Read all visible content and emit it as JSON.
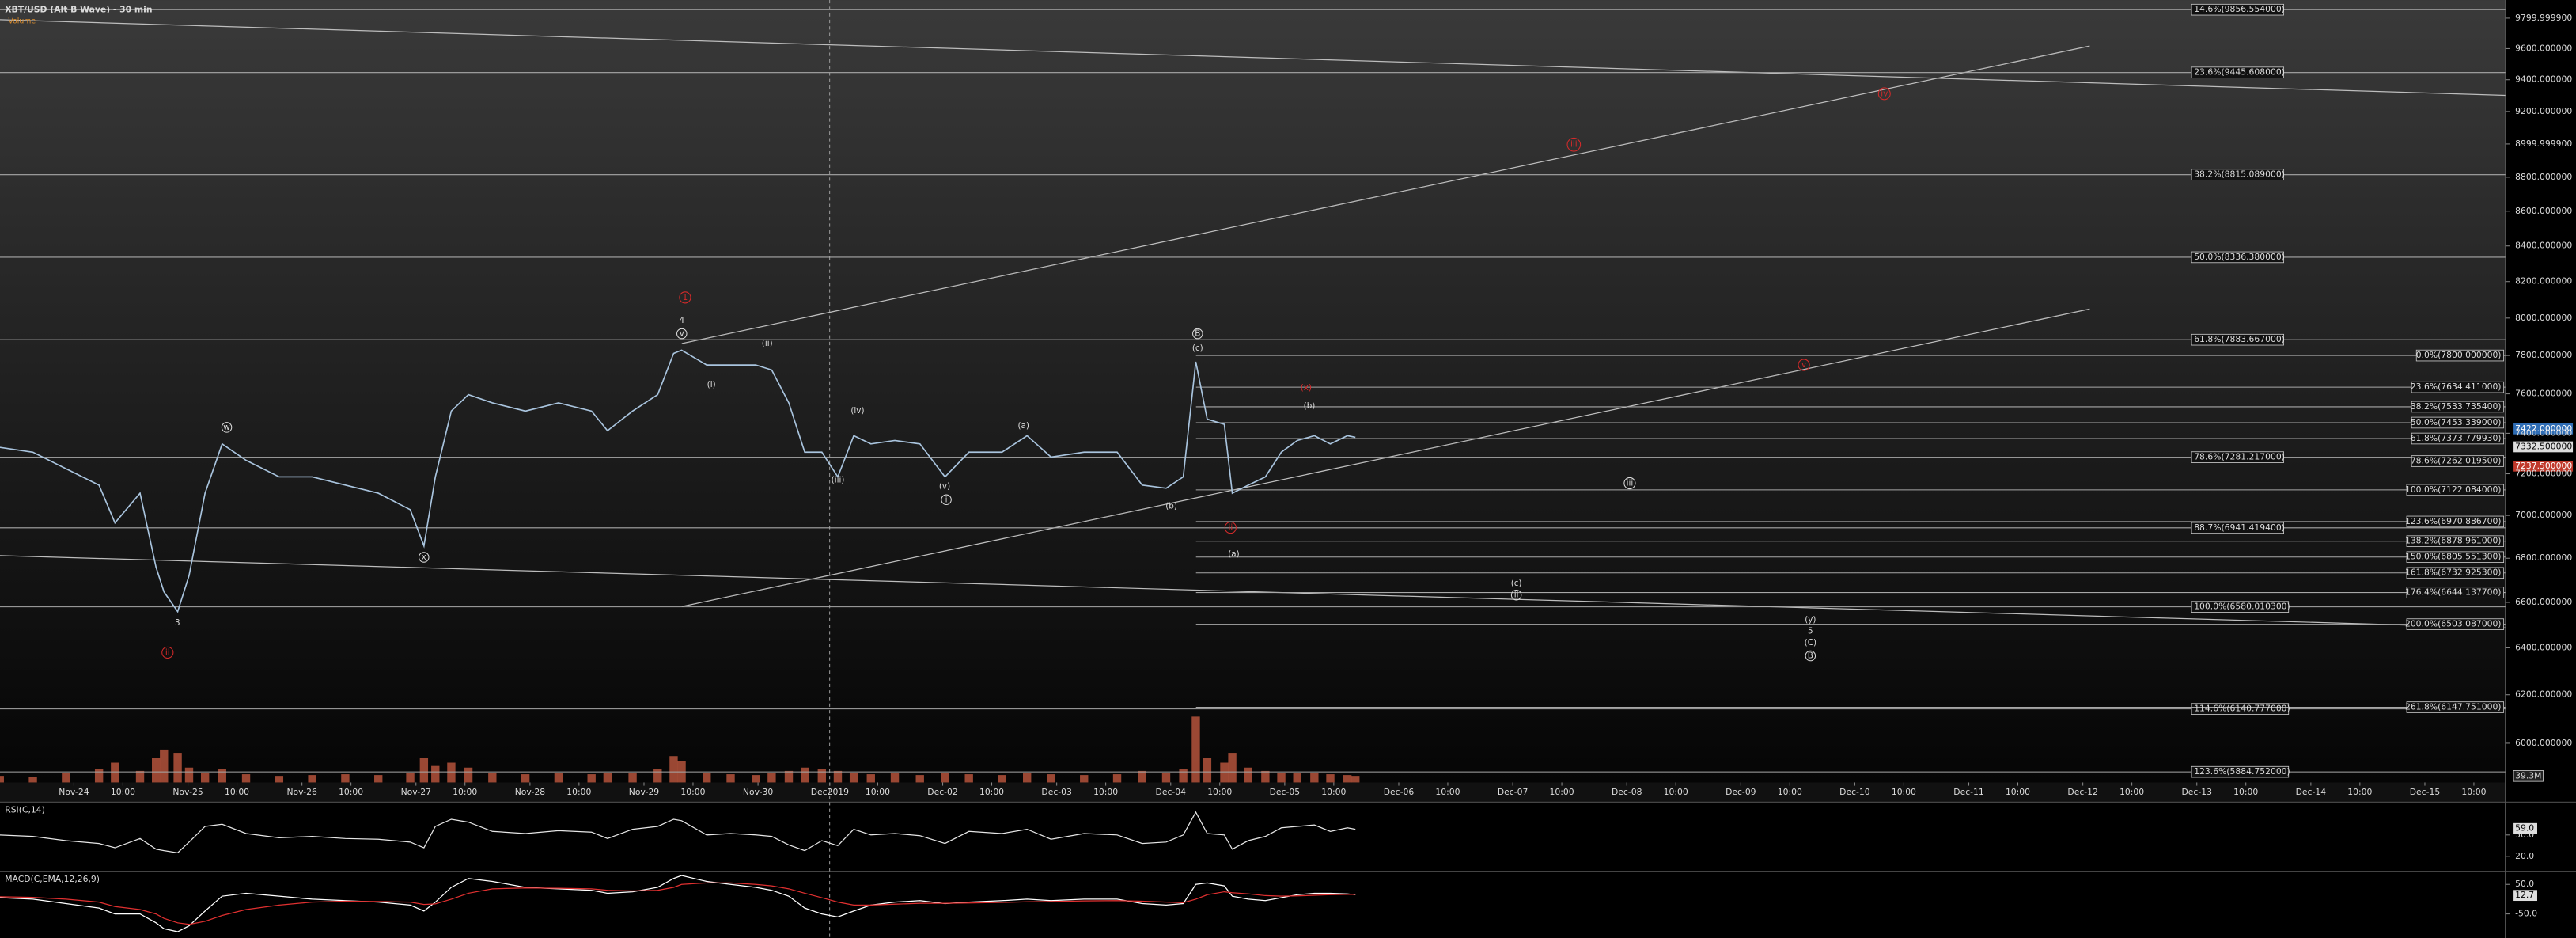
{
  "chart_data": [
    {
      "type": "line",
      "title": "XBT/USD (Alt B Wave) - 30 min",
      "subtitle": "Volume",
      "log_scale": true,
      "color": "#a9c4de",
      "volume_color": "#b5533c",
      "x": [
        -0.65,
        -0.36,
        -0.07,
        0.22,
        0.36,
        0.58,
        0.72,
        0.79,
        0.91,
        1.01,
        1.15,
        1.3,
        1.51,
        1.8,
        2.09,
        2.38,
        2.67,
        2.95,
        3.07,
        3.17,
        3.31,
        3.46,
        3.67,
        3.96,
        4.25,
        4.54,
        4.68,
        4.9,
        5.12,
        5.26,
        5.33,
        5.55,
        5.76,
        5.98,
        6.12,
        6.27,
        6.41,
        6.56,
        6.7,
        6.84,
        6.99,
        7.2,
        7.42,
        7.64,
        7.85,
        8.14,
        8.36,
        8.57,
        8.86,
        9.15,
        9.37,
        9.58,
        9.73,
        9.84,
        9.94,
        10.09,
        10.16,
        10.3,
        10.45,
        10.59,
        10.73,
        10.88,
        11.02,
        11.17,
        11.24
      ],
      "values": [
        7330,
        7306,
        7225,
        7145,
        6965,
        7106,
        6759,
        6647,
        6559,
        6721,
        7106,
        7347,
        7266,
        7185,
        7185,
        7145,
        7106,
        7027,
        6857,
        7185,
        7512,
        7596,
        7554,
        7512,
        7554,
        7512,
        7413,
        7512,
        7596,
        7811,
        7828,
        7750,
        7750,
        7750,
        7724,
        7554,
        7306,
        7306,
        7185,
        7388,
        7347,
        7364,
        7347,
        7185,
        7306,
        7306,
        7388,
        7282,
        7306,
        7306,
        7145,
        7130,
        7185,
        7767,
        7471,
        7445,
        7106,
        7145,
        7185,
        7306,
        7364,
        7388,
        7347,
        7388,
        7380
      ],
      "volume": [
        40,
        35,
        60,
        80,
        120,
        70,
        150,
        200,
        180,
        90,
        60,
        80,
        50,
        40,
        45,
        50,
        45,
        60,
        150,
        100,
        120,
        90,
        60,
        50,
        55,
        50,
        60,
        55,
        80,
        160,
        130,
        60,
        50,
        45,
        55,
        70,
        90,
        80,
        70,
        60,
        50,
        55,
        45,
        60,
        50,
        45,
        55,
        50,
        45,
        50,
        70,
        60,
        80,
        400,
        150,
        120,
        180,
        90,
        70,
        60,
        55,
        60,
        50,
        45,
        40
      ],
      "vlim": [
        0,
        400
      ],
      "volume_tag": {
        "value": 39.3,
        "label": "39.3M"
      },
      "xlim": [
        -0.6484,
        21.326
      ],
      "xticks": [
        {
          "value": 0,
          "label": "Nov-24"
        },
        {
          "value": 0.43,
          "label": "10:00"
        },
        {
          "value": 1,
          "label": "Nov-25"
        },
        {
          "value": 1.43,
          "label": "10:00"
        },
        {
          "value": 2,
          "label": "Nov-26"
        },
        {
          "value": 2.43,
          "label": "10:00"
        },
        {
          "value": 3,
          "label": "Nov-27"
        },
        {
          "value": 3.43,
          "label": "10:00"
        },
        {
          "value": 4,
          "label": "Nov-28"
        },
        {
          "value": 4.43,
          "label": "10:00"
        },
        {
          "value": 5,
          "label": "Nov-29"
        },
        {
          "value": 5.43,
          "label": "10:00"
        },
        {
          "value": 6,
          "label": "Nov-30"
        },
        {
          "value": 6.63,
          "label": "Dec2019"
        },
        {
          "value": 7.05,
          "label": "10:00"
        },
        {
          "value": 7.62,
          "label": "Dec-02"
        },
        {
          "value": 8.05,
          "label": "10:00"
        },
        {
          "value": 8.62,
          "label": "Dec-03"
        },
        {
          "value": 9.05,
          "label": "10:00"
        },
        {
          "value": 9.62,
          "label": "Dec-04"
        },
        {
          "value": 10.05,
          "label": "10:00"
        },
        {
          "value": 10.62,
          "label": "Dec-05"
        },
        {
          "value": 11.05,
          "label": "10:00"
        },
        {
          "value": 11.62,
          "label": "Dec-06"
        },
        {
          "value": 12.05,
          "label": "10:00"
        },
        {
          "value": 12.62,
          "label": "Dec-07"
        },
        {
          "value": 13.05,
          "label": "10:00"
        },
        {
          "value": 13.62,
          "label": "Dec-08"
        },
        {
          "value": 14.05,
          "label": "10:00"
        },
        {
          "value": 14.62,
          "label": "Dec-09"
        },
        {
          "value": 15.05,
          "label": "10:00"
        },
        {
          "value": 15.62,
          "label": "Dec-10"
        },
        {
          "value": 16.05,
          "label": "10:00"
        },
        {
          "value": 16.62,
          "label": "Dec-11"
        },
        {
          "value": 17.05,
          "label": "10:00"
        },
        {
          "value": 17.62,
          "label": "Dec-12"
        },
        {
          "value": 18.05,
          "label": "10:00"
        },
        {
          "value": 18.62,
          "label": "Dec-13"
        },
        {
          "value": 19.05,
          "label": "10:00"
        },
        {
          "value": 19.62,
          "label": "Dec-14"
        },
        {
          "value": 20.05,
          "label": "10:00"
        },
        {
          "value": 20.62,
          "label": "Dec-15"
        },
        {
          "value": 21.05,
          "label": "10:00"
        }
      ],
      "ylim": [
        5843,
        9921
      ],
      "yticks": [
        {
          "value": 6000,
          "label": "6000.000000"
        },
        {
          "value": 6200,
          "label": "6200.000000"
        },
        {
          "value": 6400,
          "label": "6400.000000"
        },
        {
          "value": 6600,
          "label": "6600.000000"
        },
        {
          "value": 6800,
          "label": "6800.000000"
        },
        {
          "value": 7000,
          "label": "7000.000000"
        },
        {
          "value": 7200,
          "label": "7200.000000"
        },
        {
          "value": 7400,
          "label": "7400.000000"
        },
        {
          "value": 7600,
          "label": "7600.000000"
        },
        {
          "value": 7800,
          "label": "7800.000000"
        },
        {
          "value": 8000,
          "label": "8000.000000"
        },
        {
          "value": 8200,
          "label": "8200.000000"
        },
        {
          "value": 8400,
          "label": "8400.000000"
        },
        {
          "value": 8600,
          "label": "8600.000000"
        },
        {
          "value": 8800,
          "label": "8800.000000"
        },
        {
          "value": 8999.9999,
          "label": "8999.999900"
        },
        {
          "value": 9200,
          "label": "9200.000000"
        },
        {
          "value": 9400,
          "label": "9400.000000"
        },
        {
          "value": 9600,
          "label": "9600.000000"
        },
        {
          "value": 9799.9999,
          "label": "9799.999900"
        }
      ],
      "fib_levels": [
        {
          "value": 9856.554,
          "label": "14.6%(9856.554000)"
        },
        {
          "value": 9445.608,
          "label": "23.6%(9445.608000)"
        },
        {
          "value": 8815.089,
          "label": "38.2%(8815.089000)"
        },
        {
          "value": 8336.38,
          "label": "50.0%(8336.380000)"
        },
        {
          "value": 7883.667,
          "label": "61.8%(7883.667000)"
        },
        {
          "value": 7281.217,
          "label": "78.6%(7281.217000)"
        },
        {
          "value": 6941.4194,
          "label": "88.7%(6941.419400)"
        },
        {
          "value": 6580.0103,
          "label": "100.0%(6580.010300)"
        },
        {
          "value": 6140.777,
          "label": "114.6%(6140.777000)"
        },
        {
          "value": 5884.752,
          "label": "123.6%(5884.752000)"
        }
      ],
      "fib_levels_right": [
        {
          "value": 7800,
          "label": "0.0%(7800.000000)"
        },
        {
          "value": 7634.411,
          "label": "23.6%(7634.411000)"
        },
        {
          "value": 7533.7354,
          "label": "38.2%(7533.735400)"
        },
        {
          "value": 7453.339,
          "label": "50.0%(7453.339000)"
        },
        {
          "value": 7373.77993,
          "label": "61.8%(7373.779930)"
        },
        {
          "value": 7262.0195,
          "label": "78.6%(7262.019500)"
        },
        {
          "value": 7122.084,
          "label": "100.0%(7122.084000)"
        },
        {
          "value": 6970.8867,
          "label": "123.6%(6970.886700)"
        },
        {
          "value": 6878.961,
          "label": "138.2%(6878.961000)"
        },
        {
          "value": 6805.5513,
          "label": "150.0%(6805.551300)"
        },
        {
          "value": 6732.9253,
          "label": "161.8%(6732.925300)"
        },
        {
          "value": 6644.1377,
          "label": "176.4%(6644.137700)"
        },
        {
          "value": 6503.087,
          "label": "200.0%(6503.087000)"
        },
        {
          "value": 6147.751,
          "label": "261.8%(6147.751000)"
        }
      ],
      "price_tags": [
        {
          "value": 7422,
          "label": "7422.000000",
          "color": "#2f6db5"
        },
        {
          "value": 7332.5,
          "label": "7332.500000",
          "color": "#dddddd"
        },
        {
          "value": 7237.5,
          "label": "7237.500000",
          "color": "#c0392b"
        }
      ]
    },
    {
      "type": "line",
      "title": "RSI(C,14)",
      "color": "#e6e6e6",
      "values": [
        50,
        48,
        42,
        38,
        32,
        45,
        30,
        28,
        25,
        40,
        62,
        65,
        52,
        46,
        48,
        45,
        44,
        40,
        32,
        62,
        72,
        68,
        55,
        52,
        56,
        54,
        45,
        58,
        62,
        72,
        70,
        50,
        52,
        50,
        48,
        36,
        28,
        42,
        35,
        58,
        50,
        52,
        49,
        38,
        55,
        52,
        58,
        44,
        52,
        50,
        38,
        40,
        50,
        82,
        52,
        50,
        30,
        42,
        48,
        60,
        62,
        64,
        55,
        60,
        58
      ],
      "ylim": [
        1.5,
        96
      ],
      "yticks": [
        {
          "value": 20,
          "label": "20.0"
        },
        {
          "value": 50,
          "label": "50.0"
        }
      ],
      "value_tag": {
        "value": 59,
        "label": "59.0"
      }
    },
    {
      "type": "line",
      "title": "MACD(C,EMA,12,26,9)",
      "series": [
        {
          "color": "#ffffff",
          "values": [
            5,
            0,
            -15,
            -30,
            -50,
            -50,
            -80,
            -100,
            -110,
            -90,
            -40,
            10,
            20,
            10,
            0,
            -5,
            -10,
            -20,
            -40,
            -10,
            40,
            70,
            60,
            40,
            35,
            30,
            20,
            25,
            40,
            70,
            80,
            60,
            50,
            40,
            30,
            10,
            -30,
            -50,
            -60,
            -40,
            -20,
            -10,
            -5,
            -15,
            -10,
            -5,
            0,
            -5,
            0,
            0,
            -15,
            -20,
            -15,
            50,
            55,
            45,
            10,
            0,
            -5,
            5,
            15,
            20,
            20,
            18,
            15
          ]
        },
        {
          "color": "#e03030",
          "values": [
            8,
            6,
            0,
            -10,
            -25,
            -35,
            -50,
            -65,
            -80,
            -85,
            -75,
            -55,
            -35,
            -20,
            -10,
            -7,
            -8,
            -10,
            -18,
            -16,
            0,
            20,
            35,
            38,
            37,
            35,
            30,
            28,
            30,
            40,
            50,
            55,
            55,
            50,
            45,
            35,
            20,
            5,
            -10,
            -20,
            -20,
            -17,
            -14,
            -14,
            -13,
            -11,
            -9,
            -8,
            -6,
            -5,
            -7,
            -10,
            -12,
            0,
            15,
            25,
            22,
            18,
            12,
            10,
            11,
            13,
            15,
            16,
            16
          ]
        }
      ],
      "ylim": [
        -131,
        89
      ],
      "yticks": [
        {
          "value": 50,
          "label": "50.0"
        },
        {
          "value": -50,
          "label": "-50.0"
        }
      ],
      "value_tag": {
        "value": 12.7,
        "label": "12.7"
      }
    }
  ],
  "wave_labels": [
    "4",
    "v",
    "(ii)",
    "(i)",
    "(iv)",
    "(iii)",
    "(a)",
    "(v)",
    "i",
    "w",
    "x",
    "3",
    "ii",
    "B",
    "(c)",
    "(b)",
    "(a)",
    "(b)",
    "(x)",
    "ii",
    "iii",
    "iv",
    "v",
    "iii",
    "(c)",
    "ii",
    "(y)",
    "5",
    "(C)",
    "B",
    "1"
  ]
}
